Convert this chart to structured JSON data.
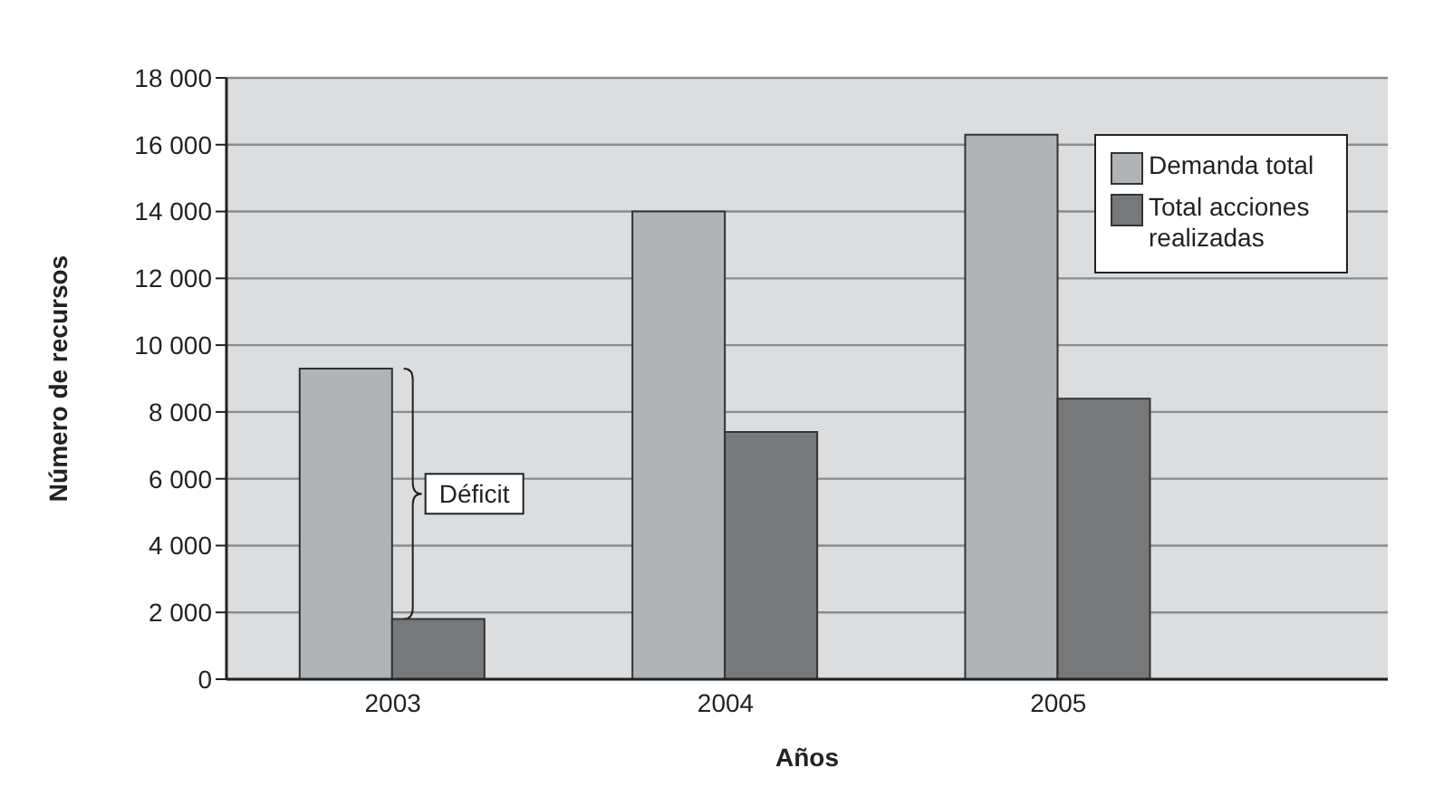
{
  "chart_data": {
    "type": "bar",
    "xlabel": "Años",
    "ylabel": "Número de recursos",
    "categories": [
      "2003",
      "2004",
      "2005"
    ],
    "series": [
      {
        "name": "Demanda total",
        "color": "#b1b4b7",
        "values": [
          9300,
          14000,
          16300
        ]
      },
      {
        "name": "Total acciones realizadas",
        "color": "#77787a",
        "values": [
          1800,
          7400,
          8400
        ]
      }
    ],
    "ylim": [
      0,
      18000
    ],
    "yticks": [
      0,
      {
        "value": 2000,
        "label": "2 000"
      },
      {
        "value": 4000,
        "label": "4 000"
      },
      {
        "value": 6000,
        "label": "6 000"
      },
      {
        "value": 8000,
        "label": "8 000"
      },
      {
        "value": 10000,
        "label": "10 000"
      },
      {
        "value": 12000,
        "label": "12 000"
      },
      {
        "value": 14000,
        "label": "14 000"
      },
      {
        "value": 16000,
        "label": "16 000"
      },
      {
        "value": 18000,
        "label": "18 000"
      }
    ],
    "grid": "y",
    "legend": "top right",
    "annotations": [
      "Déficit"
    ]
  }
}
